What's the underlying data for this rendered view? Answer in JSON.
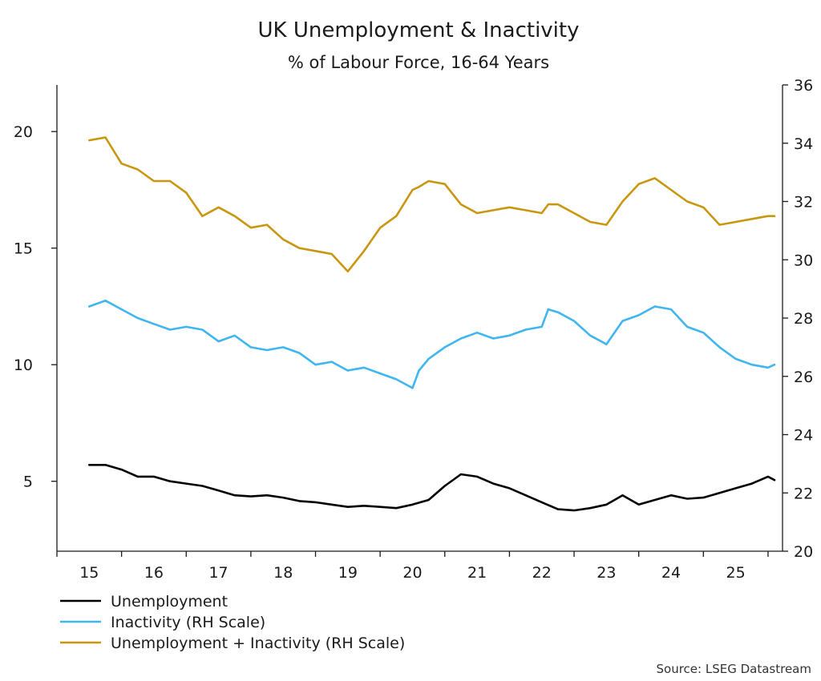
{
  "chart_data": {
    "type": "line",
    "title": "UK Unemployment & Inactivity",
    "subtitle": "% of Labour Force, 16-64 Years",
    "source": "Source: LSEG Datastream",
    "x_tick_labels": [
      "15",
      "16",
      "17",
      "18",
      "19",
      "20",
      "21",
      "22",
      "23",
      "24",
      "25"
    ],
    "x_start_year": 2015.0,
    "x_end_year": 2025.6,
    "left_axis": {
      "ylim": [
        2,
        22
      ],
      "ticks": [
        "5",
        "10",
        "15",
        "20"
      ]
    },
    "right_axis": {
      "ylim": [
        20,
        36
      ],
      "ticks": [
        "20",
        "22",
        "24",
        "26",
        "28",
        "30",
        "32",
        "34",
        "36"
      ]
    },
    "legend": {
      "placement": "bottom-left"
    },
    "series": [
      {
        "name": "Unemployment",
        "axis": "left",
        "color": "#000000",
        "x": [
          2015.0,
          2015.25,
          2015.5,
          2015.75,
          2016.0,
          2016.25,
          2016.5,
          2016.75,
          2017.0,
          2017.25,
          2017.5,
          2017.75,
          2018.0,
          2018.25,
          2018.5,
          2018.75,
          2019.0,
          2019.25,
          2019.5,
          2019.75,
          2020.0,
          2020.25,
          2020.5,
          2020.75,
          2021.0,
          2021.25,
          2021.5,
          2021.75,
          2022.0,
          2022.25,
          2022.5,
          2022.75,
          2023.0,
          2023.25,
          2023.5,
          2023.75,
          2024.0,
          2024.25,
          2024.5,
          2024.75,
          2025.0,
          2025.25,
          2025.5,
          2025.6
        ],
        "values": [
          5.7,
          5.7,
          5.5,
          5.2,
          5.2,
          5.0,
          4.9,
          4.8,
          4.6,
          4.4,
          4.35,
          4.4,
          4.3,
          4.15,
          4.1,
          4.0,
          3.9,
          3.95,
          3.9,
          3.85,
          4.0,
          4.2,
          4.8,
          5.3,
          5.2,
          4.9,
          4.7,
          4.4,
          4.1,
          3.8,
          3.75,
          3.85,
          4.0,
          4.4,
          4.0,
          4.2,
          4.4,
          4.25,
          4.3,
          4.5,
          4.7,
          4.9,
          5.2,
          5.05
        ]
      },
      {
        "name": "Inactivity (RH Scale)",
        "axis": "right",
        "color": "#3fb6ef",
        "x": [
          2015.0,
          2015.25,
          2015.5,
          2015.75,
          2016.0,
          2016.25,
          2016.5,
          2016.75,
          2017.0,
          2017.25,
          2017.5,
          2017.75,
          2018.0,
          2018.25,
          2018.5,
          2018.75,
          2019.0,
          2019.25,
          2019.5,
          2019.75,
          2020.0,
          2020.1,
          2020.25,
          2020.5,
          2020.75,
          2021.0,
          2021.25,
          2021.5,
          2021.75,
          2022.0,
          2022.1,
          2022.25,
          2022.5,
          2022.75,
          2023.0,
          2023.25,
          2023.5,
          2023.75,
          2024.0,
          2024.25,
          2024.5,
          2024.75,
          2025.0,
          2025.25,
          2025.5,
          2025.6
        ],
        "values": [
          28.4,
          28.6,
          28.3,
          28.0,
          27.8,
          27.6,
          27.7,
          27.6,
          27.2,
          27.4,
          27.0,
          26.9,
          27.0,
          26.8,
          26.4,
          26.5,
          26.2,
          26.3,
          26.1,
          25.9,
          25.6,
          26.2,
          26.6,
          27.0,
          27.3,
          27.5,
          27.3,
          27.4,
          27.6,
          27.7,
          28.3,
          28.2,
          27.9,
          27.4,
          27.1,
          27.9,
          28.1,
          28.4,
          28.3,
          27.7,
          27.5,
          27.0,
          26.6,
          26.4,
          26.3,
          26.4
        ]
      },
      {
        "name": "Unemployment + Inactivity (RH Scale)",
        "axis": "right",
        "color": "#c9960f",
        "x": [
          2015.0,
          2015.25,
          2015.5,
          2015.75,
          2016.0,
          2016.25,
          2016.5,
          2016.75,
          2017.0,
          2017.25,
          2017.5,
          2017.75,
          2018.0,
          2018.25,
          2018.5,
          2018.75,
          2019.0,
          2019.25,
          2019.5,
          2019.75,
          2020.0,
          2020.1,
          2020.25,
          2020.5,
          2020.75,
          2021.0,
          2021.25,
          2021.5,
          2021.75,
          2022.0,
          2022.1,
          2022.25,
          2022.5,
          2022.75,
          2023.0,
          2023.25,
          2023.5,
          2023.75,
          2024.0,
          2024.25,
          2024.5,
          2024.75,
          2025.0,
          2025.25,
          2025.5,
          2025.6
        ],
        "values": [
          34.1,
          34.2,
          33.3,
          33.1,
          32.7,
          32.7,
          32.3,
          31.5,
          31.8,
          31.5,
          31.1,
          31.2,
          30.7,
          30.4,
          30.3,
          30.2,
          29.6,
          30.3,
          31.1,
          31.5,
          32.4,
          32.5,
          32.7,
          32.6,
          31.9,
          31.6,
          31.7,
          31.8,
          31.7,
          31.6,
          31.9,
          31.9,
          31.6,
          31.3,
          31.2,
          32.0,
          32.6,
          32.8,
          32.4,
          32.0,
          31.8,
          31.2,
          31.3,
          31.4,
          31.5,
          31.5
        ]
      }
    ]
  }
}
